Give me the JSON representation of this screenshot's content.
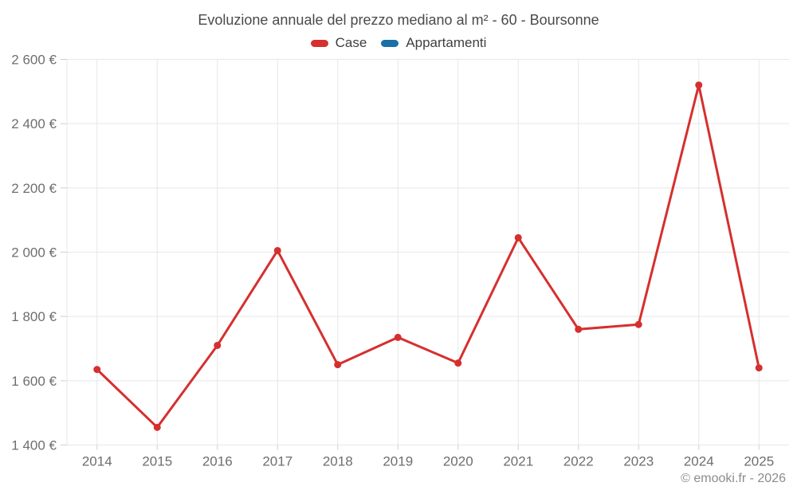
{
  "title": "Evoluzione annuale del prezzo mediano al m² - 60 - Boursonne",
  "legend": {
    "items": [
      {
        "label": "Case",
        "color": "#d62f2f"
      },
      {
        "label": "Appartamenti",
        "color": "#1a6fa5"
      }
    ]
  },
  "footer": {
    "copyright": "© emooki.fr - 2026"
  },
  "colors": {
    "accent_red": "#d62f2f",
    "accent_blue": "#1a6fa5",
    "grid": "#e7e7e7",
    "tick_mark": "#cfcfcf",
    "tick_text": "#6e6e6e",
    "title_text": "#4a4a4a"
  },
  "chart_data": {
    "type": "line",
    "title": "Evoluzione annuale del prezzo mediano al m² - 60 - Boursonne",
    "categories": [
      "2014",
      "2015",
      "2016",
      "2017",
      "2018",
      "2019",
      "2020",
      "2021",
      "2022",
      "2023",
      "2024",
      "2025"
    ],
    "series": [
      {
        "name": "Case",
        "color": "#d62f2f",
        "values": [
          1635,
          1455,
          1710,
          2005,
          1650,
          1735,
          1655,
          2045,
          1760,
          1775,
          2520,
          1640
        ]
      },
      {
        "name": "Appartamenti",
        "color": "#1a6fa5",
        "values": []
      }
    ],
    "xlabel": "",
    "ylabel": "",
    "ylim": [
      1400,
      2600
    ],
    "ytick_step": 200,
    "yticks": [
      1400,
      1600,
      1800,
      2000,
      2200,
      2400,
      2600
    ],
    "ytick_labels": [
      "1 400 €",
      "1 600 €",
      "1 800 €",
      "2 000 €",
      "2 200 €",
      "2 400 €",
      "2 600 €"
    ],
    "grid": true,
    "legend_position": "top",
    "marker_radius": 4.5,
    "line_width": 3
  }
}
